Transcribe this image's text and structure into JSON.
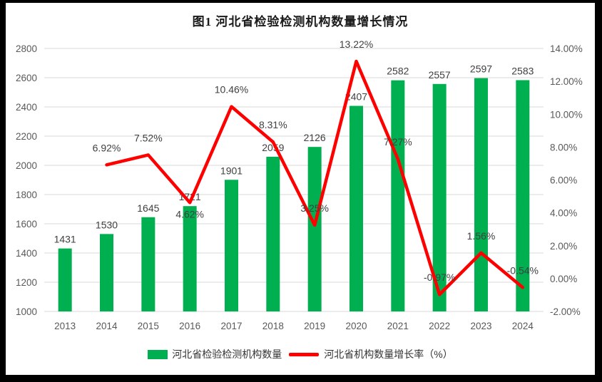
{
  "window": {
    "background": "#ffffff",
    "frame_color": "#000000"
  },
  "chart_data": {
    "type": "combo",
    "title": "图1 河北省检验检测机构数量增长情况",
    "categories": [
      "2013",
      "2014",
      "2015",
      "2016",
      "2017",
      "2018",
      "2019",
      "2020",
      "2021",
      "2022",
      "2023",
      "2024"
    ],
    "series": [
      {
        "name": "河北省检验检测机构数量",
        "type": "bar",
        "axis": "left",
        "color": "#00B050",
        "values": [
          1431,
          1530,
          1645,
          1721,
          1901,
          2059,
          2126,
          2407,
          2582,
          2557,
          2597,
          2583
        ],
        "labels": [
          "1431",
          "1530",
          "1645",
          "1721",
          "1901",
          "2059",
          "2126",
          "2407",
          "2582",
          "2557",
          "2597",
          "2583"
        ]
      },
      {
        "name": "河北省机构数量增长率（%）",
        "type": "line",
        "axis": "right",
        "color": "#FF0000",
        "values": [
          null,
          6.92,
          7.52,
          4.62,
          10.46,
          8.31,
          3.25,
          13.22,
          7.27,
          -0.97,
          1.56,
          -0.54
        ],
        "labels": [
          null,
          "6.92%",
          "7.52%",
          "4.62%",
          "10.46%",
          "8.31%",
          "3.25%",
          "13.22%",
          "7.27%",
          "-0.97%",
          "1.56%",
          "-0.54%"
        ]
      }
    ],
    "left_axis": {
      "min": 1000,
      "max": 2800,
      "step": 200,
      "ticks": [
        "1000",
        "1200",
        "1400",
        "1600",
        "1800",
        "2000",
        "2200",
        "2400",
        "2600",
        "2800"
      ]
    },
    "right_axis": {
      "min": -2,
      "max": 14,
      "step": 2,
      "ticks": [
        "-2.00%",
        "0.00%",
        "2.00%",
        "4.00%",
        "6.00%",
        "8.00%",
        "10.00%",
        "12.00%",
        "14.00%"
      ]
    },
    "grid": true,
    "legend_position": "bottom",
    "colors": {
      "gridline": "#D9D9D9",
      "axis_text": "#595959",
      "data_label": "#404040",
      "title_text": "#1A1A1A",
      "legend_text": "#333333"
    }
  }
}
